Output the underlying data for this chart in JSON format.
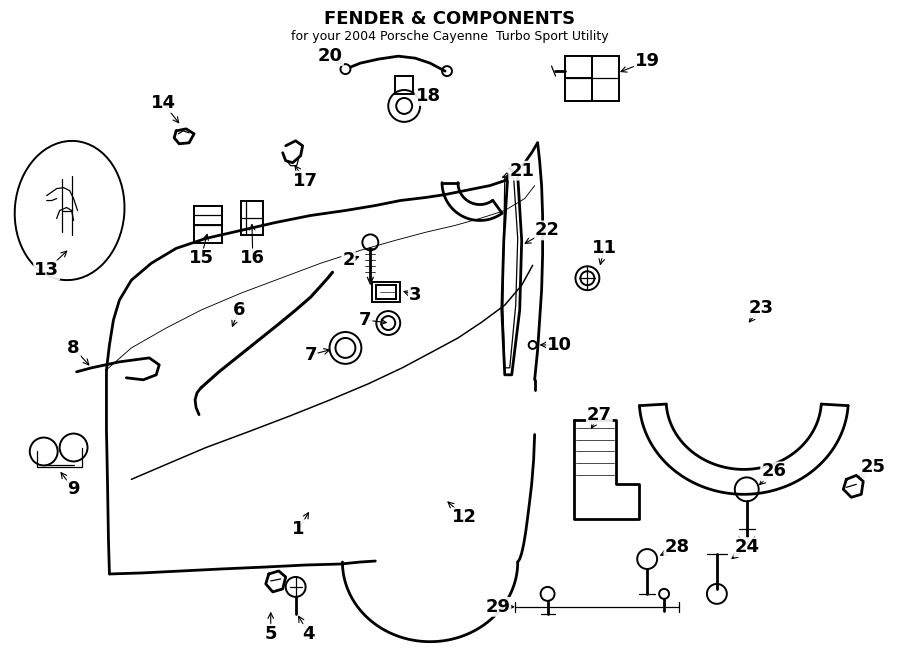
{
  "title": "FENDER & COMPONENTS",
  "subtitle": "for your 2004 Porsche Cayenne  Turbo Sport Utility",
  "bg": "#ffffff",
  "lc": "#000000",
  "fig_w": 9.0,
  "fig_h": 6.61,
  "dpi": 100,
  "label_fs": 13,
  "subtitle_fs": 9,
  "title_fs": 13,
  "lw": 1.4,
  "lw_thin": 0.9,
  "lw_thick": 2.0
}
